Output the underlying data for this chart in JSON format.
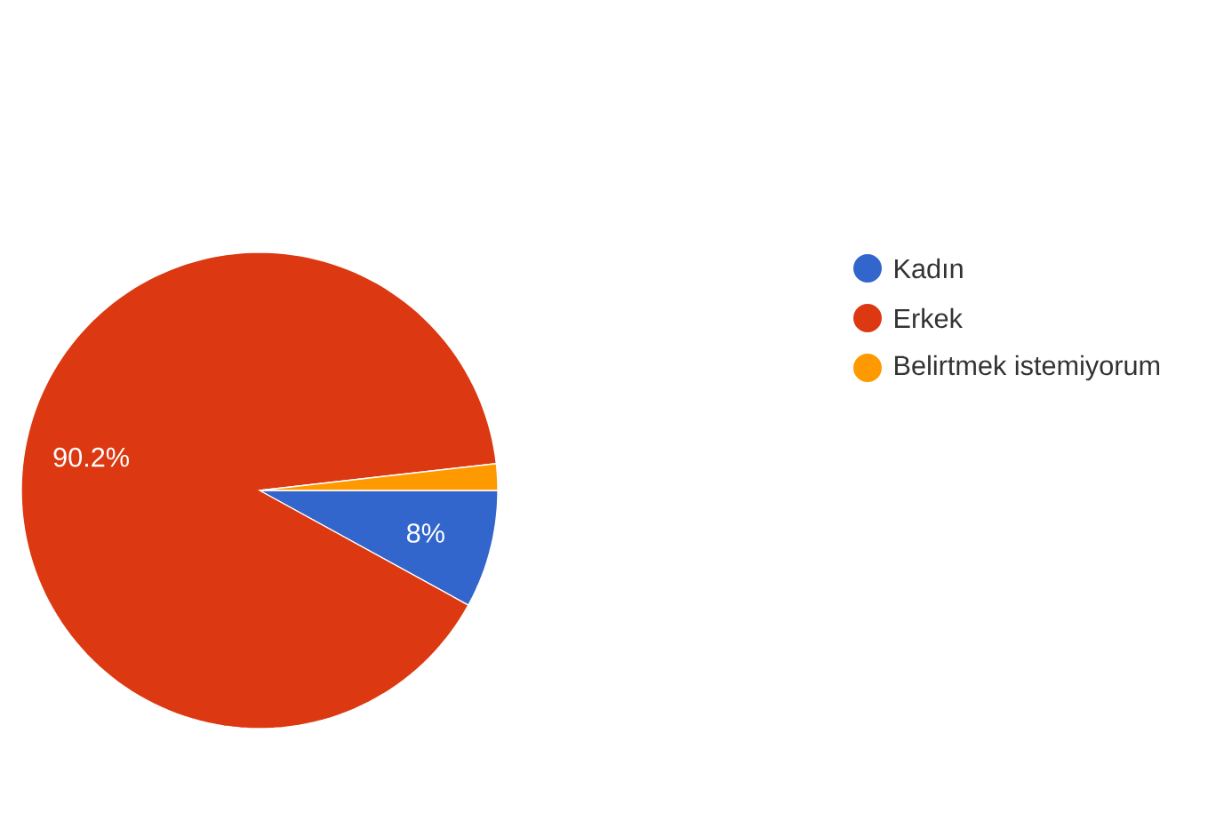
{
  "chart_data": {
    "type": "pie",
    "categories": [
      "Kadın",
      "Erkek",
      "Belirtmek istemiyorum"
    ],
    "values": [
      8,
      90.2,
      1.8
    ],
    "colors": [
      "#3366cc",
      "#dc3912",
      "#ff9900"
    ],
    "value_labels": [
      "8%",
      "90.2%",
      null
    ],
    "legend": "right"
  }
}
